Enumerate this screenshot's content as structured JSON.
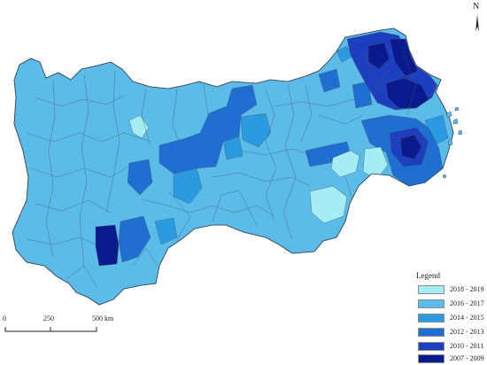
{
  "north_arrow": {
    "letter": "N"
  },
  "legend": {
    "title": "Legend",
    "items": [
      {
        "label": "2018 - 2019",
        "color": "#a3edf3"
      },
      {
        "label": "2016 - 2017",
        "color": "#5bbbe9"
      },
      {
        "label": "2014 - 2015",
        "color": "#2b9ae0"
      },
      {
        "label": "2012 - 2013",
        "color": "#1f6fd2"
      },
      {
        "label": "2010 - 2011",
        "color": "#1b3fbf"
      },
      {
        "label": "2007 - 2009",
        "color": "#0a1a8c"
      }
    ]
  },
  "scalebar": {
    "ticks": [
      "0",
      "250",
      "500 km"
    ]
  },
  "colors": {
    "boundary": "#4a5a6a",
    "outline": "#3a4a5a"
  }
}
